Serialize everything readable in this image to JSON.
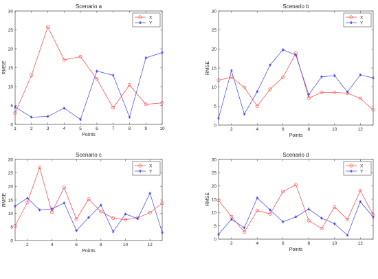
{
  "colors": {
    "X": "#ff3b3b",
    "Y": "#3b3bff"
  },
  "chart_data": [
    {
      "type": "line",
      "title": "Scenario a",
      "xlabel": "Points",
      "ylabel": "RMSE",
      "xlim": [
        1,
        10
      ],
      "ylim": [
        0,
        30
      ],
      "xticks": [
        1,
        2,
        3,
        4,
        5,
        6,
        7,
        8,
        9,
        10
      ],
      "yticks": [
        0,
        5,
        10,
        15,
        20,
        25,
        30
      ],
      "legend": "top-right",
      "grid": false,
      "series": [
        {
          "name": "X",
          "color": "#ff3b3b",
          "marker": "circle",
          "x": [
            1,
            2,
            3,
            4,
            5,
            6,
            7,
            8,
            9,
            10
          ],
          "y": [
            3.0,
            13.0,
            25.8,
            17.1,
            17.9,
            12.0,
            4.4,
            10.4,
            5.3,
            5.7
          ]
        },
        {
          "name": "Y",
          "color": "#3b3bff",
          "marker": "star",
          "x": [
            1,
            2,
            3,
            4,
            5,
            6,
            7,
            8,
            9,
            10
          ],
          "y": [
            4.6,
            1.9,
            2.1,
            4.3,
            1.3,
            14.1,
            13.0,
            1.9,
            17.6,
            19.0
          ]
        }
      ]
    },
    {
      "type": "line",
      "title": "Scenario b",
      "xlabel": "Points",
      "ylabel": "RMSE",
      "xlim": [
        1,
        13
      ],
      "ylim": [
        0,
        30
      ],
      "xticks": [
        2,
        4,
        6,
        8,
        10,
        12
      ],
      "yticks": [
        0,
        5,
        10,
        15,
        20,
        25,
        30
      ],
      "legend": "top-right",
      "grid": false,
      "series": [
        {
          "name": "X",
          "color": "#ff3b3b",
          "marker": "circle",
          "x": [
            1,
            2,
            3,
            4,
            5,
            6,
            7,
            8,
            9,
            10,
            11,
            12,
            13
          ],
          "y": [
            11.8,
            12.6,
            9.9,
            5.0,
            9.4,
            12.6,
            18.9,
            7.1,
            8.6,
            8.6,
            8.4,
            7.0,
            4.0
          ]
        },
        {
          "name": "Y",
          "color": "#3b3bff",
          "marker": "star",
          "x": [
            1,
            2,
            3,
            4,
            5,
            6,
            7,
            8,
            9,
            10,
            11,
            12,
            13
          ],
          "y": [
            1.8,
            14.3,
            2.9,
            8.8,
            15.8,
            19.8,
            18.4,
            8.0,
            12.7,
            13.0,
            8.7,
            13.2,
            12.4
          ]
        }
      ]
    },
    {
      "type": "line",
      "title": "Scenario c",
      "xlabel": "Points",
      "ylabel": "RMSE",
      "xlim": [
        1,
        13
      ],
      "ylim": [
        0,
        30
      ],
      "xticks": [
        2,
        4,
        6,
        8,
        10,
        12
      ],
      "yticks": [
        0,
        5,
        10,
        15,
        20,
        25,
        30
      ],
      "legend": "top-right",
      "grid": false,
      "series": [
        {
          "name": "X",
          "color": "#ff3b3b",
          "marker": "circle",
          "x": [
            1,
            2,
            3,
            4,
            5,
            6,
            7,
            8,
            9,
            10,
            11,
            12,
            13
          ],
          "y": [
            5.4,
            14.1,
            27.0,
            10.5,
            19.6,
            7.9,
            15.3,
            10.7,
            8.3,
            7.7,
            8.4,
            10.3,
            13.8
          ]
        },
        {
          "name": "Y",
          "color": "#3b3bff",
          "marker": "star",
          "x": [
            1,
            2,
            3,
            4,
            5,
            6,
            7,
            8,
            9,
            10,
            11,
            12,
            13
          ],
          "y": [
            12.7,
            15.7,
            11.3,
            11.7,
            13.9,
            3.7,
            8.5,
            13.1,
            3.3,
            9.8,
            8.1,
            17.5,
            3.0
          ]
        }
      ]
    },
    {
      "type": "line",
      "title": "Scenario d",
      "xlabel": "Points",
      "ylabel": "RMSE",
      "xlim": [
        1,
        13
      ],
      "ylim": [
        0,
        30
      ],
      "xticks": [
        2,
        4,
        6,
        8,
        10,
        12
      ],
      "yticks": [
        0,
        5,
        10,
        15,
        20,
        25,
        30
      ],
      "legend": "top-right",
      "grid": false,
      "series": [
        {
          "name": "X",
          "color": "#ff3b3b",
          "marker": "circle",
          "x": [
            1,
            2,
            3,
            4,
            5,
            6,
            7,
            8,
            9,
            10,
            11,
            12,
            13
          ],
          "y": [
            14.6,
            8.5,
            2.7,
            10.7,
            9.5,
            17.9,
            20.5,
            7.0,
            4.0,
            12.1,
            7.4,
            18.3,
            9.1
          ]
        },
        {
          "name": "Y",
          "color": "#3b3bff",
          "marker": "star",
          "x": [
            1,
            2,
            3,
            4,
            5,
            6,
            7,
            8,
            9,
            10,
            11,
            12,
            13
          ],
          "y": [
            1.8,
            7.5,
            4.3,
            15.5,
            11.0,
            6.5,
            8.4,
            11.3,
            7.9,
            5.8,
            1.5,
            14.1,
            8.3
          ]
        }
      ]
    }
  ]
}
